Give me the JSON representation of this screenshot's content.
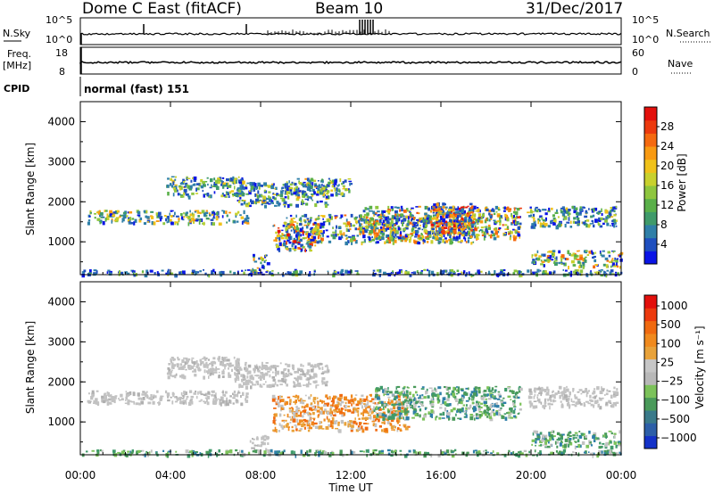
{
  "header": {
    "title": "Dome C East (fitACF)",
    "beam": "Beam 10",
    "date": "31/Dec/2017"
  },
  "aux_panels": {
    "nsky": {
      "label": "N.Sky",
      "ticks": [
        "10^5",
        "10^0"
      ]
    },
    "nsearch": {
      "label": "N.Search",
      "ticks": [
        "10^5",
        "10^0"
      ],
      "line_color": "#000000",
      "line_style": "dotted"
    },
    "freq": {
      "label_line1": "Freq.",
      "label_line2": "[MHz]",
      "ticks": [
        "18",
        "8"
      ]
    },
    "nave": {
      "label": "Nave",
      "ticks": [
        "60",
        "0"
      ],
      "line_style": "dotted"
    },
    "cpid": {
      "label": "CPID",
      "value": "normal (fast) 151"
    }
  },
  "chart_data": [
    {
      "type": "heatmap",
      "quantity": "Power",
      "ylabel": "Slant Range [km]",
      "xlabel": "Time UT",
      "x_ticks": [
        "00:00",
        "04:00",
        "08:00",
        "12:00",
        "16:00",
        "20:00",
        "00:00"
      ],
      "y_ticks": [
        "1000",
        "2000",
        "3000",
        "4000"
      ],
      "xlim_hours": [
        0,
        24
      ],
      "ylim_km": [
        180,
        4500
      ],
      "colorbar": {
        "label": "Power [dB]",
        "tick_labels": [
          "4",
          "8",
          "12",
          "16",
          "20",
          "24",
          "28"
        ],
        "colors": [
          "#0a14e6",
          "#1f4fbf",
          "#2f7fa8",
          "#3f9a6a",
          "#5ab04a",
          "#8ec63f",
          "#c8d12e",
          "#f0c21a",
          "#f89a12",
          "#f56a10",
          "#ec3a0e",
          "#e3100c"
        ]
      },
      "echo_regions": [
        {
          "t": [
            0.3,
            7.4
          ],
          "r": [
            1480,
            1800
          ],
          "level": 0.45
        },
        {
          "t": [
            3.8,
            7.2
          ],
          "r": [
            2150,
            2650
          ],
          "level": 0.35
        },
        {
          "t": [
            6.8,
            11.0
          ],
          "r": [
            1900,
            2500
          ],
          "level": 0.4
        },
        {
          "t": [
            9.0,
            17.5
          ],
          "r": [
            1000,
            1700
          ],
          "level": 0.55
        },
        {
          "t": [
            12.5,
            19.5
          ],
          "r": [
            1100,
            1900
          ],
          "level": 0.6
        },
        {
          "t": [
            15.5,
            17.5
          ],
          "r": [
            1200,
            2000
          ],
          "level": 0.8
        },
        {
          "t": [
            8.5,
            10.5
          ],
          "r": [
            800,
            1500
          ],
          "level": 0.7
        },
        {
          "t": [
            19.8,
            23.8
          ],
          "r": [
            1400,
            1900
          ],
          "level": 0.35
        },
        {
          "t": [
            20.0,
            24.0
          ],
          "r": [
            400,
            800
          ],
          "level": 0.55
        },
        {
          "t": [
            9.0,
            12.0
          ],
          "r": [
            2200,
            2600
          ],
          "level": 0.4
        },
        {
          "t": [
            7.5,
            8.3
          ],
          "r": [
            300,
            700
          ],
          "level": 0.5
        },
        {
          "t": [
            0.0,
            24.0
          ],
          "r": [
            190,
            320
          ],
          "level": 0.3
        }
      ]
    },
    {
      "type": "heatmap",
      "quantity": "Velocity",
      "ylabel": "Slant Range [km]",
      "xlabel": "Time UT",
      "x_ticks": [
        "00:00",
        "04:00",
        "08:00",
        "12:00",
        "16:00",
        "20:00",
        "00:00"
      ],
      "y_ticks": [
        "1000",
        "2000",
        "3000",
        "4000"
      ],
      "xlim_hours": [
        0,
        24
      ],
      "ylim_km": [
        180,
        4500
      ],
      "colorbar": {
        "label": "Velocity [m s⁻¹]",
        "tick_labels": [
          "1000",
          "500",
          "100",
          "25",
          "−25",
          "−100",
          "−500",
          "−1000"
        ],
        "colors": [
          "#1432c8",
          "#2d5fa8",
          "#3a7a8a",
          "#4a9a5a",
          "#7cc25a",
          "#b8b8b8",
          "#c6c6c6",
          "#e8a23a",
          "#f08a1e",
          "#f06a10",
          "#ec3a0e",
          "#e3100c"
        ]
      },
      "echo_regions": [
        {
          "t": [
            0.3,
            7.4
          ],
          "r": [
            1480,
            1800
          ],
          "v": "ground"
        },
        {
          "t": [
            3.8,
            7.2
          ],
          "r": [
            2150,
            2650
          ],
          "v": "ground"
        },
        {
          "t": [
            6.8,
            11.0
          ],
          "r": [
            1900,
            2500
          ],
          "v": "ground"
        },
        {
          "t": [
            8.5,
            14.5
          ],
          "r": [
            800,
            1700
          ],
          "v": "negative"
        },
        {
          "t": [
            13.0,
            19.5
          ],
          "r": [
            1100,
            1900
          ],
          "v": "positive"
        },
        {
          "t": [
            19.8,
            23.8
          ],
          "r": [
            1400,
            1900
          ],
          "v": "ground"
        },
        {
          "t": [
            20.0,
            24.0
          ],
          "r": [
            400,
            800
          ],
          "v": "positive"
        },
        {
          "t": [
            7.5,
            8.3
          ],
          "r": [
            300,
            700
          ],
          "v": "ground"
        },
        {
          "t": [
            0.0,
            24.0
          ],
          "r": [
            190,
            320
          ],
          "v": "positive"
        }
      ]
    }
  ]
}
